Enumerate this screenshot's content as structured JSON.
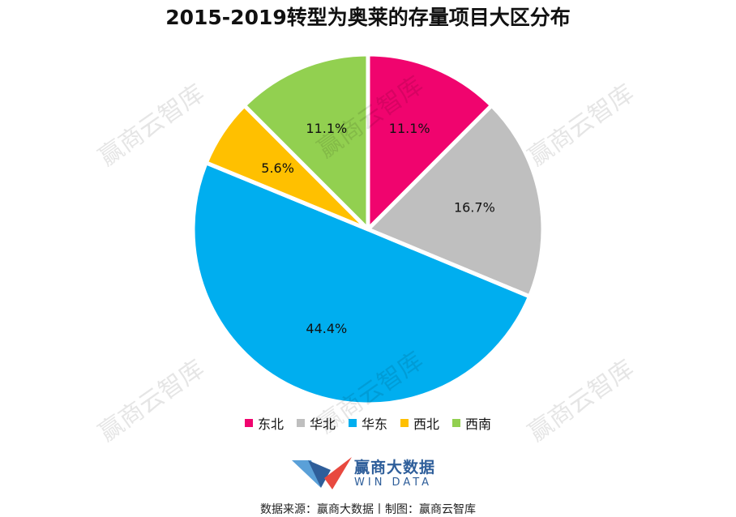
{
  "watermark_text": "赢商云智库",
  "brand": {
    "name": "赢商大数据",
    "sub": "WIN DATA",
    "primary_color": "#2e5e9a",
    "accent_color": "#e8493f"
  },
  "source_line": "数据来源：赢商大数据丨制图：赢商云智库",
  "chart_data": {
    "type": "pie",
    "title": "2015-2019转型为奥莱的存量项目大区分布",
    "legend_position": "bottom",
    "slices": [
      {
        "name": "东北",
        "value": 11.1,
        "label": "11.1%",
        "color": "#f0046e"
      },
      {
        "name": "华北",
        "value": 16.7,
        "label": "16.7%",
        "color": "#bfbfbf"
      },
      {
        "name": "华东",
        "value": 44.4,
        "label": "44.4%",
        "color": "#00aeef"
      },
      {
        "name": "西北",
        "value": 5.6,
        "label": "5.6%",
        "color": "#ffc000"
      },
      {
        "name": "西南",
        "value": 11.1,
        "label": "11.1%",
        "color": "#92d050"
      }
    ]
  }
}
